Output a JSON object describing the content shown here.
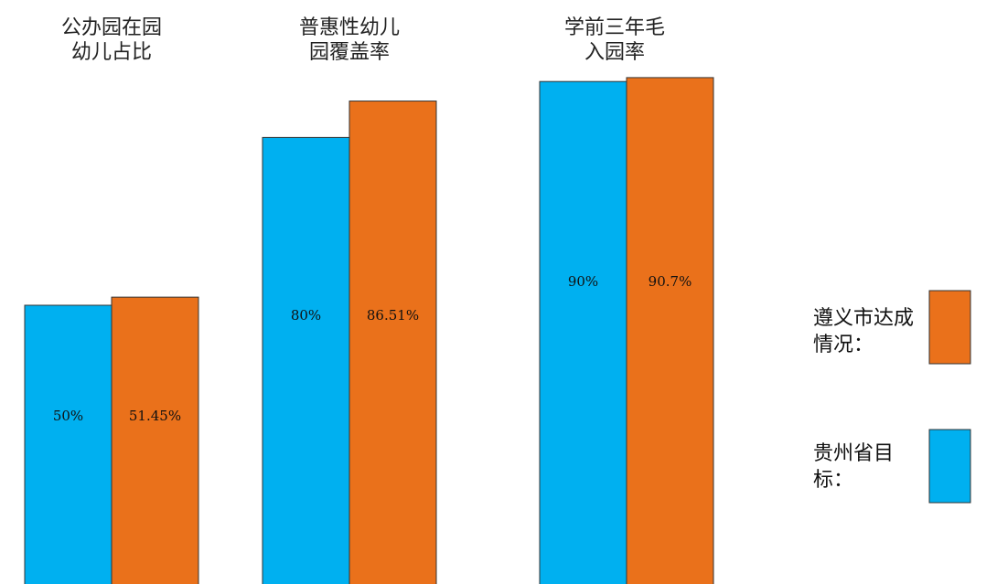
{
  "chart_data": {
    "type": "bar",
    "categories": [
      "公办园在园幼儿占比",
      "普惠性幼儿园覆盖率",
      "学前三年毛入园率"
    ],
    "series": [
      {
        "name": "贵州省目标：",
        "color": "#00b0f0",
        "values": [
          50,
          80,
          90
        ],
        "value_labels": [
          "50%",
          "80%",
          "90%"
        ]
      },
      {
        "name": "遵义市达成情况：",
        "color": "#ea711b",
        "values": [
          51.45,
          86.51,
          90.7
        ],
        "value_labels": [
          "51.45%",
          "86.51%",
          "90.7%"
        ]
      }
    ]
  }
}
